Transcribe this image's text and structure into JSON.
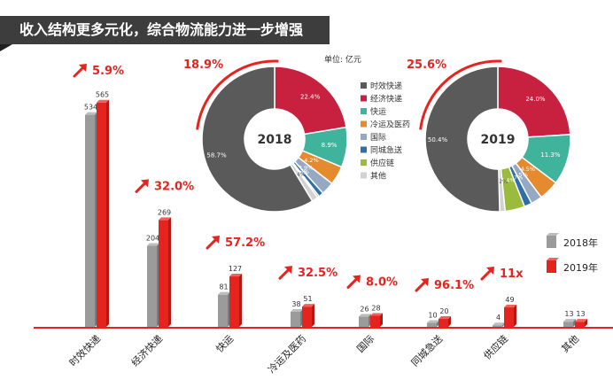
{
  "header": {
    "title": "收入结构更多元化，综合物流能力进一步增强"
  },
  "chart_data": {
    "type": "bar",
    "unit": "单位: 亿元",
    "categories": [
      "时效快递",
      "经济快递",
      "快运",
      "冷运及医药",
      "国际",
      "同城急送",
      "供应链",
      "其他"
    ],
    "series": [
      {
        "name": "2018年",
        "values": [
          534,
          204,
          81,
          38,
          26,
          10,
          4,
          13
        ],
        "color": "#9b9b9b"
      },
      {
        "name": "2019年",
        "values": [
          565,
          269,
          127,
          51,
          28,
          20,
          49,
          13
        ],
        "color": "#e6241f"
      }
    ],
    "growth": [
      "5.9%",
      "32.0%",
      "57.2%",
      "32.5%",
      "8.0%",
      "96.1%",
      "11x",
      ""
    ],
    "ylim": [
      0,
      600
    ],
    "legend": [
      "时效快递",
      "经济快递",
      "快运",
      "冷运及医药",
      "国际",
      "同城急送",
      "供应链",
      "其他"
    ],
    "donuts": [
      {
        "year": "2018",
        "highlight": "18.9%",
        "slices": [
          {
            "label": "时效快递",
            "value": 58.7,
            "text": "58.7%"
          },
          {
            "label": "经济快递",
            "value": 22.4,
            "text": "22.4%"
          },
          {
            "label": "快运",
            "value": 8.9,
            "text": "8.9%"
          },
          {
            "label": "冷运及医药",
            "value": 4.2,
            "text": "4.2%"
          },
          {
            "label": "国际",
            "value": 2.9,
            "text": "2.9%"
          },
          {
            "label": "同城急送",
            "value": 1.1,
            "text": "1.1%"
          },
          {
            "label": "供应链",
            "value": 0.4,
            "text": "0.4%"
          },
          {
            "label": "其他",
            "value": 1.4,
            "text": "1.4%"
          }
        ]
      },
      {
        "year": "2019",
        "highlight": "25.6%",
        "slices": [
          {
            "label": "时效快递",
            "value": 50.4,
            "text": "50.4%"
          },
          {
            "label": "经济快递",
            "value": 24.0,
            "text": "24.0%"
          },
          {
            "label": "快运",
            "value": 11.3,
            "text": "11.3%"
          },
          {
            "label": "冷运及医药",
            "value": 4.5,
            "text": "4.5%"
          },
          {
            "label": "国际",
            "value": 2.5,
            "text": "2.5%"
          },
          {
            "label": "同城急送",
            "value": 1.7,
            "text": "1.7%"
          },
          {
            "label": "供应链",
            "value": 4.4,
            "text": "4.4%"
          },
          {
            "label": "其他",
            "value": 1.2,
            "text": "1.2%"
          }
        ]
      }
    ],
    "palette": {
      "时效快递": "#5a5a5a",
      "经济快递": "#c8203f",
      "快运": "#40b39c",
      "冷运及医药": "#e58a2e",
      "国际": "#95a9c4",
      "同城急送": "#2f6ea8",
      "供应链": "#9bbb3c",
      "其他": "#d2d2d2"
    }
  }
}
